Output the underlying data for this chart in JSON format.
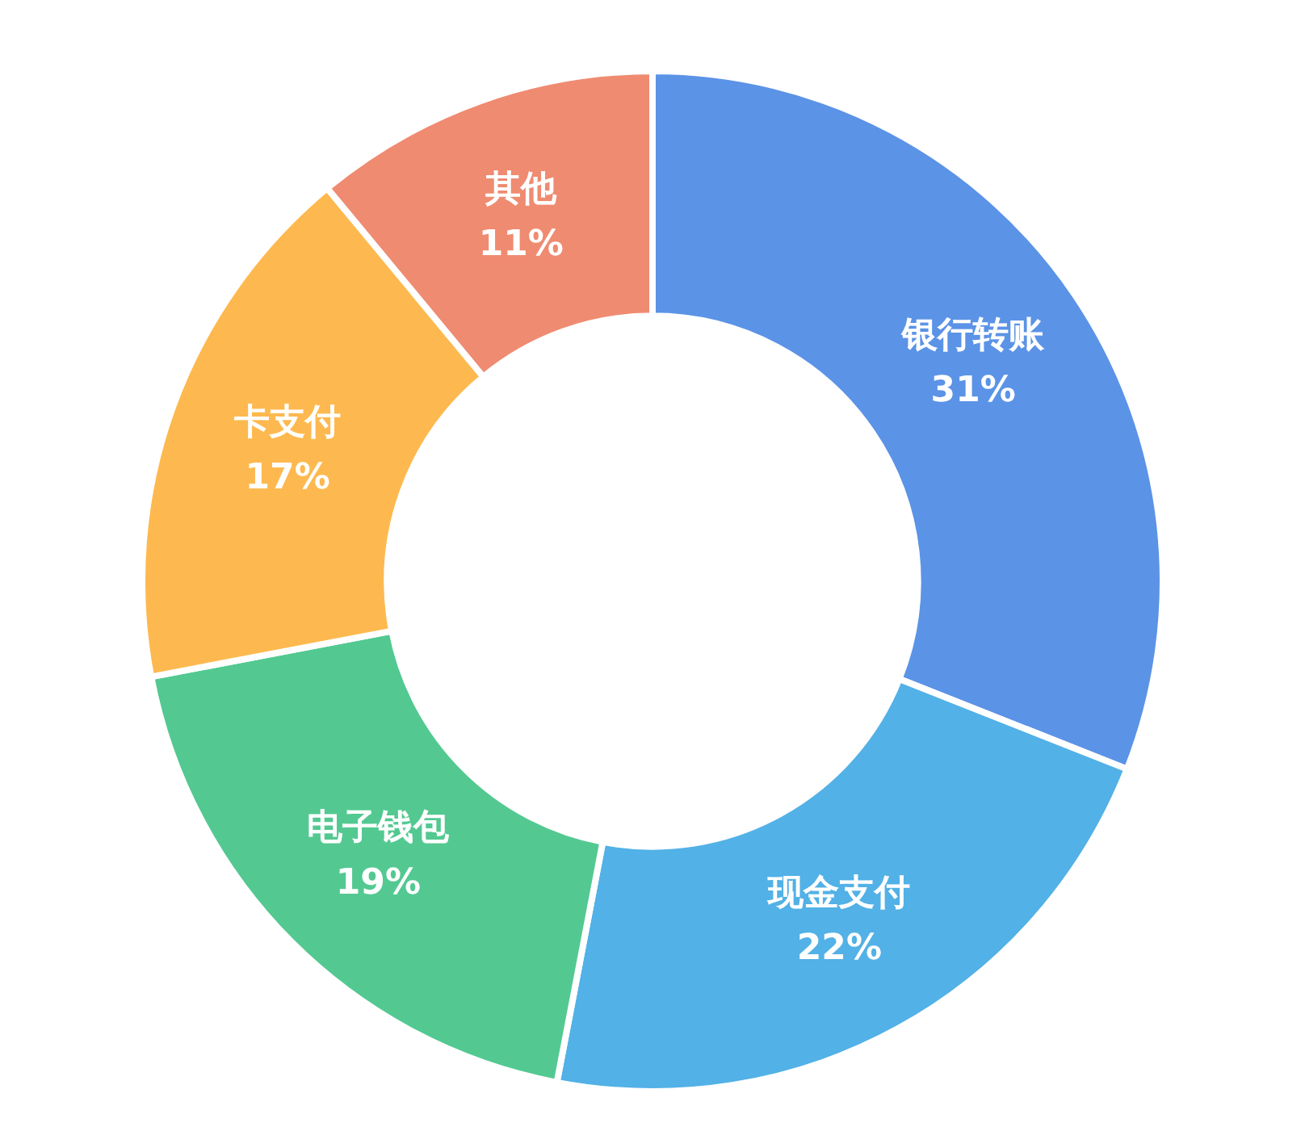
{
  "chart_data": {
    "type": "donut",
    "categories": [
      "银行转账",
      "现金支付",
      "电子钱包",
      "卡支付",
      "其他"
    ],
    "values": [
      31,
      22,
      19,
      17,
      11
    ],
    "value_labels": [
      "31%",
      "22%",
      "19%",
      "17%",
      "11%"
    ],
    "colors": [
      "#5b93e6",
      "#52b1e6",
      "#53c991",
      "#fdb94f",
      "#ef8b71"
    ],
    "legend": false
  }
}
